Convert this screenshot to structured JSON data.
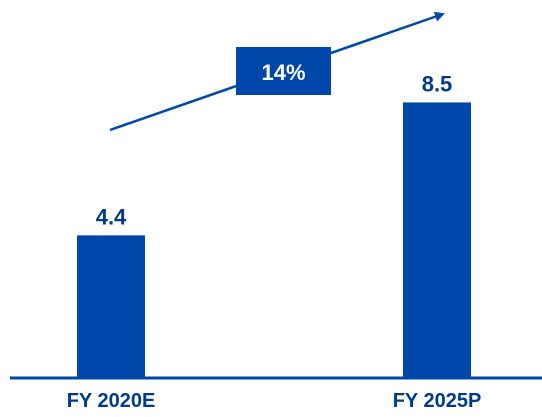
{
  "chart_data": {
    "type": "bar",
    "categories": [
      "FY 2020E",
      "FY 2025P"
    ],
    "values": [
      4.4,
      8.5
    ],
    "value_labels": [
      "4.4",
      "8.5"
    ],
    "title": "",
    "xlabel": "",
    "ylabel": "",
    "ylim": [
      0,
      9.5
    ],
    "grid": false,
    "legend": "none",
    "annotation": {
      "text": "14%",
      "shape": "upward arrow with label box"
    },
    "colors": {
      "bar": "#0047AB",
      "text": "#003A8C",
      "annotation_box": "#0047AB",
      "annotation_text": "#ffffff",
      "axis": "#0047AB"
    }
  }
}
